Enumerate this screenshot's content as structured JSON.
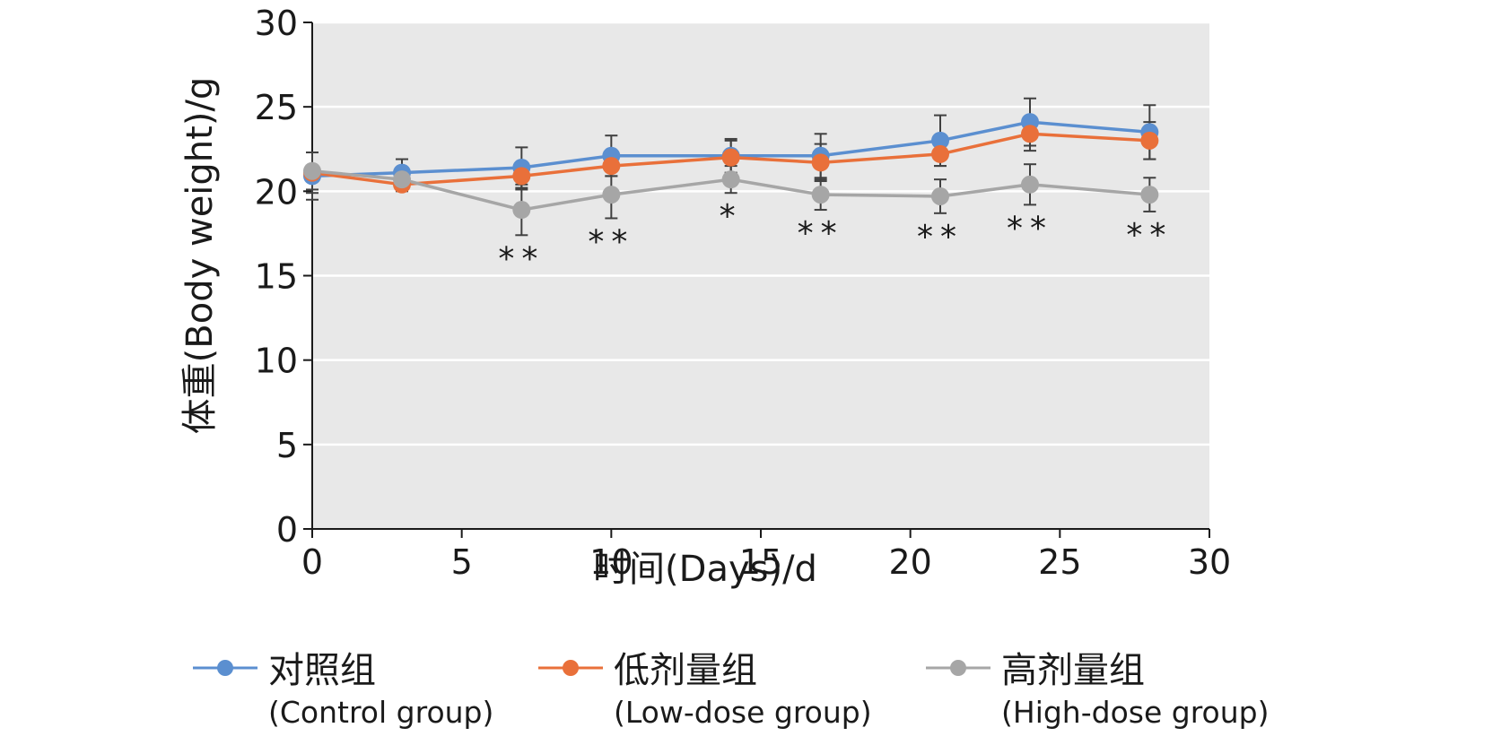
{
  "chart_data": {
    "type": "line",
    "title": "",
    "xlabel": "时间(Days)/d",
    "ylabel": "体重(Body weight)/g",
    "xlim": [
      0,
      30
    ],
    "ylim": [
      0,
      30
    ],
    "xticks": [
      0,
      5,
      10,
      15,
      20,
      25,
      30
    ],
    "yticks": [
      0,
      5,
      10,
      15,
      20,
      25,
      30
    ],
    "grid": "horizontal",
    "legend_position": "bottom",
    "x": [
      0,
      3,
      7,
      10,
      14,
      17,
      21,
      24,
      28
    ],
    "series": [
      {
        "name": "对照组",
        "name_en": "(Control group)",
        "color": "#5b8fd0",
        "values": [
          20.9,
          21.1,
          21.4,
          22.1,
          22.1,
          22.1,
          23.0,
          24.1,
          23.5
        ],
        "errors": [
          1.4,
          0.8,
          1.2,
          1.2,
          1.0,
          1.3,
          1.5,
          1.4,
          1.6
        ]
      },
      {
        "name": "低剂量组",
        "name_en": "(Low-dose group)",
        "color": "#e9703a",
        "values": [
          21.1,
          20.4,
          20.9,
          21.5,
          22.0,
          21.7,
          22.2,
          23.4,
          23.0
        ],
        "errors": [
          1.2,
          0.4,
          0.8,
          0.6,
          1.0,
          1.1,
          0.7,
          1.0,
          1.1
        ]
      },
      {
        "name": "高剂量组",
        "name_en": "(High-dose group)",
        "color": "#a6a6a6",
        "values": [
          21.2,
          20.7,
          18.9,
          19.8,
          20.7,
          19.8,
          19.7,
          20.4,
          19.8
        ],
        "errors": [
          1.1,
          0.5,
          1.5,
          1.4,
          0.8,
          0.9,
          1.0,
          1.2,
          1.0
        ]
      }
    ],
    "annotations": [
      {
        "x": 7,
        "text": "**"
      },
      {
        "x": 10,
        "text": "**"
      },
      {
        "x": 14,
        "text": "*"
      },
      {
        "x": 17,
        "text": "**"
      },
      {
        "x": 21,
        "text": "**"
      },
      {
        "x": 24,
        "text": "**"
      },
      {
        "x": 28,
        "text": "**"
      }
    ]
  },
  "colors": {
    "plot_background": "#e8e8e8",
    "gridline": "#ffffff",
    "axis": "#1a1a1a",
    "error_bar": "#404040"
  }
}
